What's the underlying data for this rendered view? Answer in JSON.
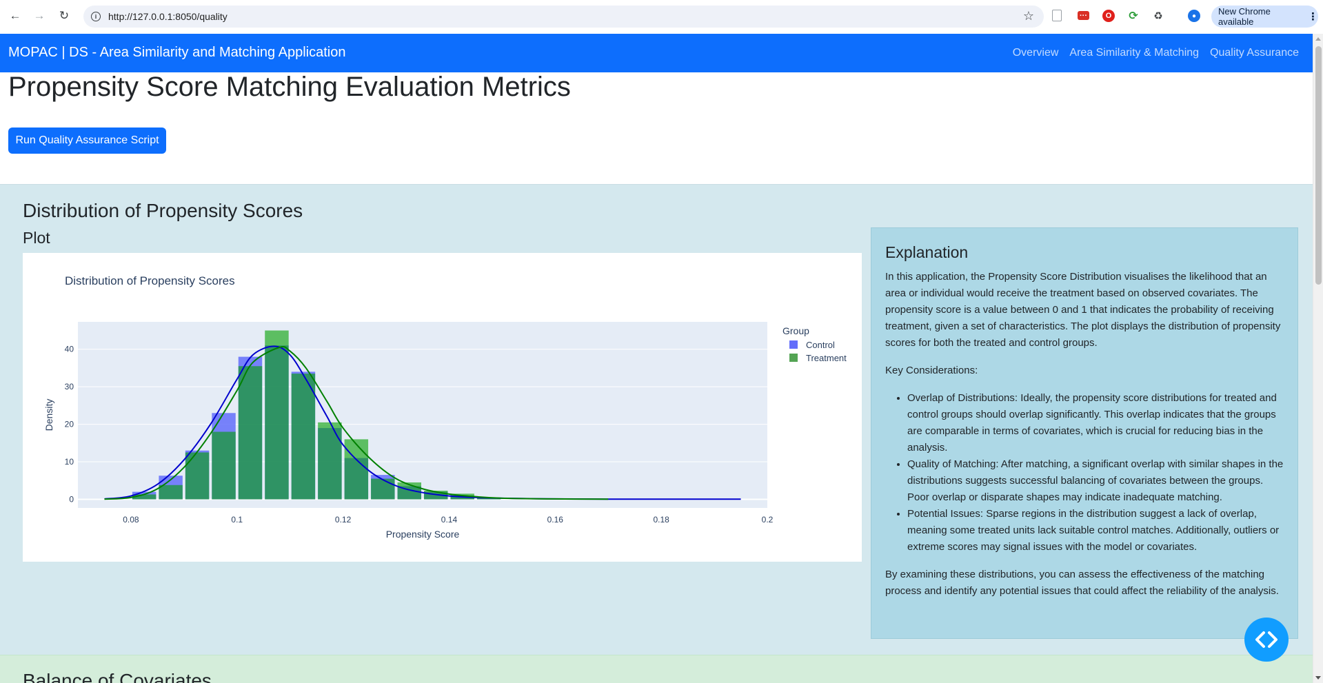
{
  "browser": {
    "url": "http://127.0.0.1:8050/quality",
    "new_chrome_label": "New Chrome available"
  },
  "navbar": {
    "brand": "MOPAC | DS - Area Similarity and Matching Application",
    "links": [
      "Overview",
      "Area Similarity & Matching",
      "Quality Assurance"
    ]
  },
  "page": {
    "title": "Propensity Score Matching Evaluation Metrics",
    "run_button": "Run Quality Assurance Script"
  },
  "distribution_section": {
    "title": "Distribution of Propensity Scores",
    "plot_heading": "Plot",
    "explanation": {
      "title": "Explanation",
      "intro": "In this application, the Propensity Score Distribution visualises the likelihood that an area or individual would receive the treatment based on observed covariates. The propensity score is a value between 0 and 1 that indicates the probability of receiving treatment, given a set of characteristics. The plot displays the distribution of propensity scores for both the treated and control groups.",
      "key_heading": "Key Considerations:",
      "points": [
        "Overlap of Distributions: Ideally, the propensity score distributions for treated and control groups should overlap significantly. This overlap indicates that the groups are comparable in terms of covariates, which is crucial for reducing bias in the analysis.",
        "Quality of Matching: After matching, a significant overlap with similar shapes in the distributions suggests successful balancing of covariates between the groups. Poor overlap or disparate shapes may indicate inadequate matching.",
        "Potential Issues: Sparse regions in the distribution suggest a lack of overlap, meaning some treated units lack suitable control matches. Additionally, outliers or extreme scores may signal issues with the model or covariates."
      ],
      "conclusion": "By examining these distributions, you can assess the effectiveness of the matching process and identify any potential issues that could affect the reliability of the analysis."
    }
  },
  "balance_section": {
    "title": "Balance of Covariates"
  },
  "colors": {
    "primary": "#0d6efd",
    "control": "#636efa",
    "treatment": "#00a000",
    "control_curve": "#0000cd",
    "treatment_curve": "#008000",
    "plot_bg": "#e5ecf6"
  },
  "chart_data": {
    "type": "bar",
    "title": "Distribution of Propensity Scores",
    "xlabel": "Propensity Score",
    "ylabel": "Density",
    "xlim": [
      0.07,
      0.2
    ],
    "ylim": [
      -2.3,
      47.3
    ],
    "xticks": [
      "0.08",
      "0.1",
      "0.12",
      "0.14",
      "0.16",
      "0.18",
      "0.2"
    ],
    "yticks": [
      "0",
      "10",
      "20",
      "30",
      "40"
    ],
    "legend_title": "Group",
    "legend_position": "top-right",
    "grid": true,
    "bin_width": 0.005,
    "bin_starts": [
      0.08,
      0.085,
      0.09,
      0.095,
      0.1,
      0.105,
      0.11,
      0.115,
      0.12,
      0.125,
      0.13,
      0.135,
      0.14,
      0.145
    ],
    "series": [
      {
        "name": "Control",
        "values": [
          2,
          6.3,
          13,
          23,
          38,
          41,
          34,
          19,
          11,
          6.5,
          3.5,
          2,
          1,
          0.3
        ]
      },
      {
        "name": "Treatment",
        "values": [
          1.3,
          3.8,
          12.5,
          18,
          35.5,
          45,
          33.5,
          20.5,
          16,
          5.5,
          4.5,
          2.3,
          1.5,
          0.3
        ]
      }
    ],
    "curves": [
      {
        "name": "Control",
        "x": [
          0.075,
          0.08,
          0.085,
          0.09,
          0.095,
          0.1,
          0.103,
          0.107,
          0.11,
          0.113,
          0.117,
          0.12,
          0.125,
          0.13,
          0.135,
          0.14,
          0.145,
          0.15,
          0.16,
          0.17,
          0.18,
          0.195
        ],
        "y": [
          0.1,
          0.9,
          4,
          10.5,
          20,
          32,
          38.5,
          40.8,
          38.5,
          32,
          22,
          14.5,
          7.5,
          3.6,
          1.8,
          0.9,
          0.5,
          0.3,
          0.1,
          0.05,
          0.05,
          0.05
        ]
      },
      {
        "name": "Treatment",
        "x": [
          0.075,
          0.08,
          0.085,
          0.09,
          0.095,
          0.1,
          0.103,
          0.108,
          0.11,
          0.113,
          0.117,
          0.12,
          0.125,
          0.13,
          0.135,
          0.14,
          0.145,
          0.15,
          0.16,
          0.17
        ],
        "y": [
          0.05,
          0.5,
          2.8,
          8.5,
          17.5,
          29,
          36.5,
          40.5,
          39.5,
          35,
          26,
          19,
          11,
          5.5,
          2.8,
          1.4,
          0.7,
          0.3,
          0.1,
          0.05
        ]
      }
    ]
  }
}
